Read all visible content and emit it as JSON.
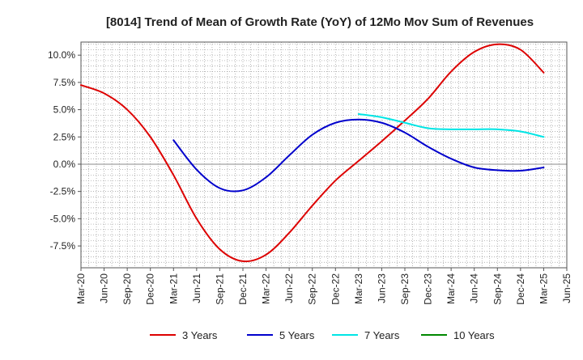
{
  "chart_data": {
    "type": "line",
    "title": "[8014]  Trend of Mean of Growth Rate (YoY) of 12Mo Mov Sum of Revenues",
    "xlabel": "",
    "ylabel": "",
    "ylim": [
      -9.5,
      11.2
    ],
    "y_ticks": [
      -7.5,
      -5.0,
      -2.5,
      0.0,
      2.5,
      5.0,
      7.5,
      10.0
    ],
    "y_tick_labels": [
      "-7.5%",
      "-5.0%",
      "-2.5%",
      "0.0%",
      "2.5%",
      "5.0%",
      "7.5%",
      "10.0%"
    ],
    "x_tick_labels": [
      "Mar-20",
      "Jun-20",
      "Sep-20",
      "Dec-20",
      "Mar-21",
      "Jun-21",
      "Sep-21",
      "Dec-21",
      "Mar-22",
      "Jun-22",
      "Sep-22",
      "Dec-22",
      "Mar-23",
      "Jun-23",
      "Sep-23",
      "Dec-23",
      "Mar-24",
      "Jun-24",
      "Sep-24",
      "Dec-24",
      "Mar-25",
      "Jun-25"
    ],
    "grid": true,
    "legend_position": "bottom",
    "series": [
      {
        "name": "3 Years",
        "color": "#dd0000",
        "points": [
          [
            0,
            7.25
          ],
          [
            1,
            6.5
          ],
          [
            2,
            5.0
          ],
          [
            3,
            2.5
          ],
          [
            4,
            -1.0
          ],
          [
            5,
            -5.0
          ],
          [
            6,
            -7.8
          ],
          [
            7,
            -8.9
          ],
          [
            8,
            -8.3
          ],
          [
            9,
            -6.3
          ],
          [
            10,
            -3.8
          ],
          [
            11,
            -1.5
          ],
          [
            12,
            0.3
          ],
          [
            13,
            2.1
          ],
          [
            14,
            4.0
          ],
          [
            15,
            6.0
          ],
          [
            16,
            8.5
          ],
          [
            17,
            10.3
          ],
          [
            18,
            11.0
          ],
          [
            19,
            10.5
          ],
          [
            20,
            8.4
          ]
        ]
      },
      {
        "name": "5 Years",
        "color": "#0000cc",
        "points": [
          [
            4,
            2.2
          ],
          [
            5,
            -0.5
          ],
          [
            6,
            -2.2
          ],
          [
            7,
            -2.4
          ],
          [
            8,
            -1.2
          ],
          [
            9,
            0.8
          ],
          [
            10,
            2.7
          ],
          [
            11,
            3.8
          ],
          [
            12,
            4.1
          ],
          [
            13,
            3.8
          ],
          [
            14,
            2.9
          ],
          [
            15,
            1.6
          ],
          [
            16,
            0.5
          ],
          [
            17,
            -0.3
          ],
          [
            18,
            -0.55
          ],
          [
            19,
            -0.6
          ],
          [
            20,
            -0.3
          ]
        ]
      },
      {
        "name": "7 Years",
        "color": "#00e5e5",
        "points": [
          [
            12,
            4.6
          ],
          [
            13,
            4.3
          ],
          [
            14,
            3.8
          ],
          [
            15,
            3.3
          ],
          [
            16,
            3.2
          ],
          [
            17,
            3.2
          ],
          [
            18,
            3.2
          ],
          [
            19,
            3.0
          ],
          [
            20,
            2.5
          ]
        ]
      },
      {
        "name": "10 Years",
        "color": "#008800",
        "points": []
      }
    ]
  }
}
